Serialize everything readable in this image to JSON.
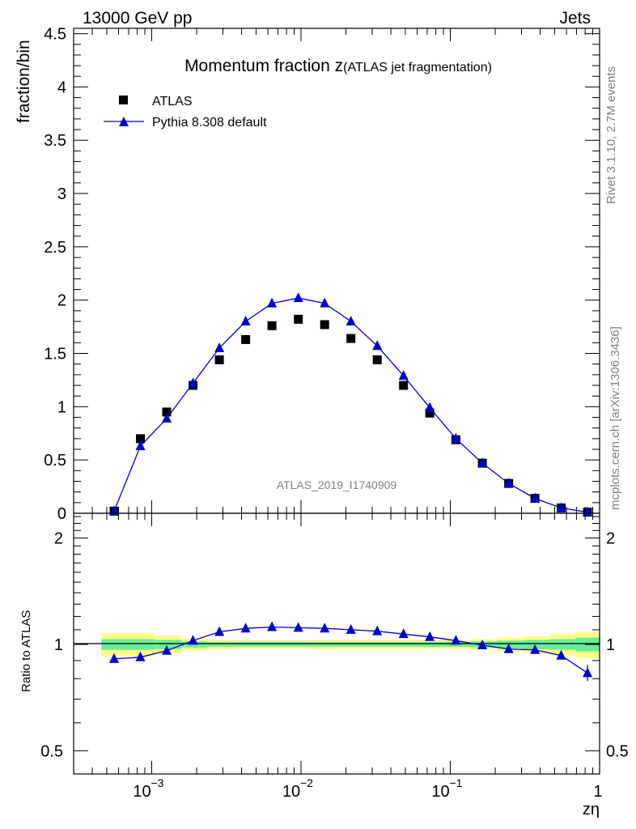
{
  "header": {
    "left": "13000 GeV pp",
    "right": "Jets"
  },
  "side_labels": {
    "rivet": "Rivet 3.1.10,  2.7M events",
    "mcplots": "mcplots.cern.ch [arXiv:1306.3436]"
  },
  "chart_data": [
    {
      "type": "scatter",
      "title": "Momentum fraction z",
      "title_suffix": "(ATLAS jet fragmentation)",
      "ylabel": "fraction/bin",
      "analysis_id": "ATLAS_2019_I1740909",
      "xscale": "log",
      "xlim": [
        0.0003,
        1
      ],
      "ylim": [
        0,
        4.55
      ],
      "y_ticks": [
        0,
        0.5,
        1,
        1.5,
        2,
        2.5,
        3,
        3.5,
        4,
        4.5
      ],
      "y_tick_labels": [
        "0",
        "0.5",
        "1",
        "1.5",
        "2",
        "2.5",
        "3",
        "3.5",
        "4",
        "4.5"
      ],
      "legend": {
        "placement": "top-left",
        "entries": [
          "ATLAS",
          "Pythia 8.308 default"
        ]
      },
      "series": [
        {
          "name": "ATLAS",
          "marker": "square",
          "color": "#000000",
          "x": [
            0.00056,
            0.00084,
            0.00126,
            0.00189,
            0.00284,
            0.00426,
            0.00639,
            0.0096,
            0.0144,
            0.0216,
            0.0324,
            0.0486,
            0.0729,
            0.109,
            0.164,
            0.246,
            0.369,
            0.553,
            0.83
          ],
          "y": [
            0.02,
            0.7,
            0.95,
            1.2,
            1.44,
            1.63,
            1.76,
            1.82,
            1.77,
            1.64,
            1.44,
            1.2,
            0.94,
            0.69,
            0.47,
            0.28,
            0.14,
            0.05,
            0.01
          ]
        },
        {
          "name": "Pythia 8.308 default",
          "marker": "triangle",
          "color": "#0000cc",
          "x": [
            0.00056,
            0.00084,
            0.00126,
            0.00189,
            0.00284,
            0.00426,
            0.00639,
            0.0096,
            0.0144,
            0.0216,
            0.0324,
            0.0486,
            0.0729,
            0.109,
            0.164,
            0.246,
            0.369,
            0.553,
            0.83
          ],
          "y": [
            0.02,
            0.63,
            0.89,
            1.22,
            1.55,
            1.8,
            1.97,
            2.02,
            1.97,
            1.8,
            1.57,
            1.29,
            0.99,
            0.7,
            0.47,
            0.28,
            0.14,
            0.05,
            0.01
          ]
        }
      ]
    },
    {
      "type": "line",
      "ylabel": "Ratio to ATLAS",
      "xlabel": "zη",
      "xscale": "log",
      "xlim": [
        0.0003,
        1
      ],
      "yscale": "log",
      "ylim": [
        0.43,
        2.35
      ],
      "y_ticks": [
        0.5,
        1,
        2
      ],
      "y_tick_labels": [
        "0.5",
        "1",
        "2"
      ],
      "x_ticks": [
        0.001,
        0.01,
        0.1,
        1
      ],
      "x_tick_labels": [
        {
          "base": "10",
          "exp": "−3"
        },
        {
          "base": "10",
          "exp": "−2"
        },
        {
          "base": "10",
          "exp": "−1"
        },
        {
          "base": "1",
          "exp": ""
        }
      ],
      "uncertainty_bands": {
        "x_edges": [
          0.00046,
          0.0007,
          0.00105,
          0.00158,
          0.00237,
          0.00355,
          0.00533,
          0.008,
          0.012,
          0.018,
          0.027,
          0.0405,
          0.0607,
          0.091,
          0.137,
          0.205,
          0.307,
          0.461,
          0.691,
          1.0
        ],
        "stat_color": "#66ee99",
        "total_color": "#ffff88",
        "stat_halfwidth": [
          0.035,
          0.035,
          0.03,
          0.02,
          0.015,
          0.015,
          0.015,
          0.015,
          0.015,
          0.015,
          0.015,
          0.015,
          0.015,
          0.015,
          0.02,
          0.025,
          0.03,
          0.035,
          0.045
        ],
        "total_halfwidth": [
          0.075,
          0.075,
          0.06,
          0.04,
          0.03,
          0.025,
          0.025,
          0.025,
          0.03,
          0.03,
          0.03,
          0.03,
          0.03,
          0.03,
          0.035,
          0.045,
          0.055,
          0.07,
          0.085
        ]
      },
      "series": [
        {
          "name": "Pythia 8.308 default",
          "color": "#0000cc",
          "x": [
            0.00056,
            0.00084,
            0.00126,
            0.00189,
            0.00284,
            0.00426,
            0.00639,
            0.0096,
            0.0144,
            0.0216,
            0.0324,
            0.0486,
            0.0729,
            0.109,
            0.164,
            0.246,
            0.369,
            0.553,
            0.83
          ],
          "y": [
            0.91,
            0.92,
            0.96,
            1.025,
            1.085,
            1.11,
            1.12,
            1.115,
            1.11,
            1.1,
            1.09,
            1.07,
            1.05,
            1.025,
            0.995,
            0.97,
            0.965,
            0.93,
            0.83
          ]
        }
      ]
    }
  ]
}
